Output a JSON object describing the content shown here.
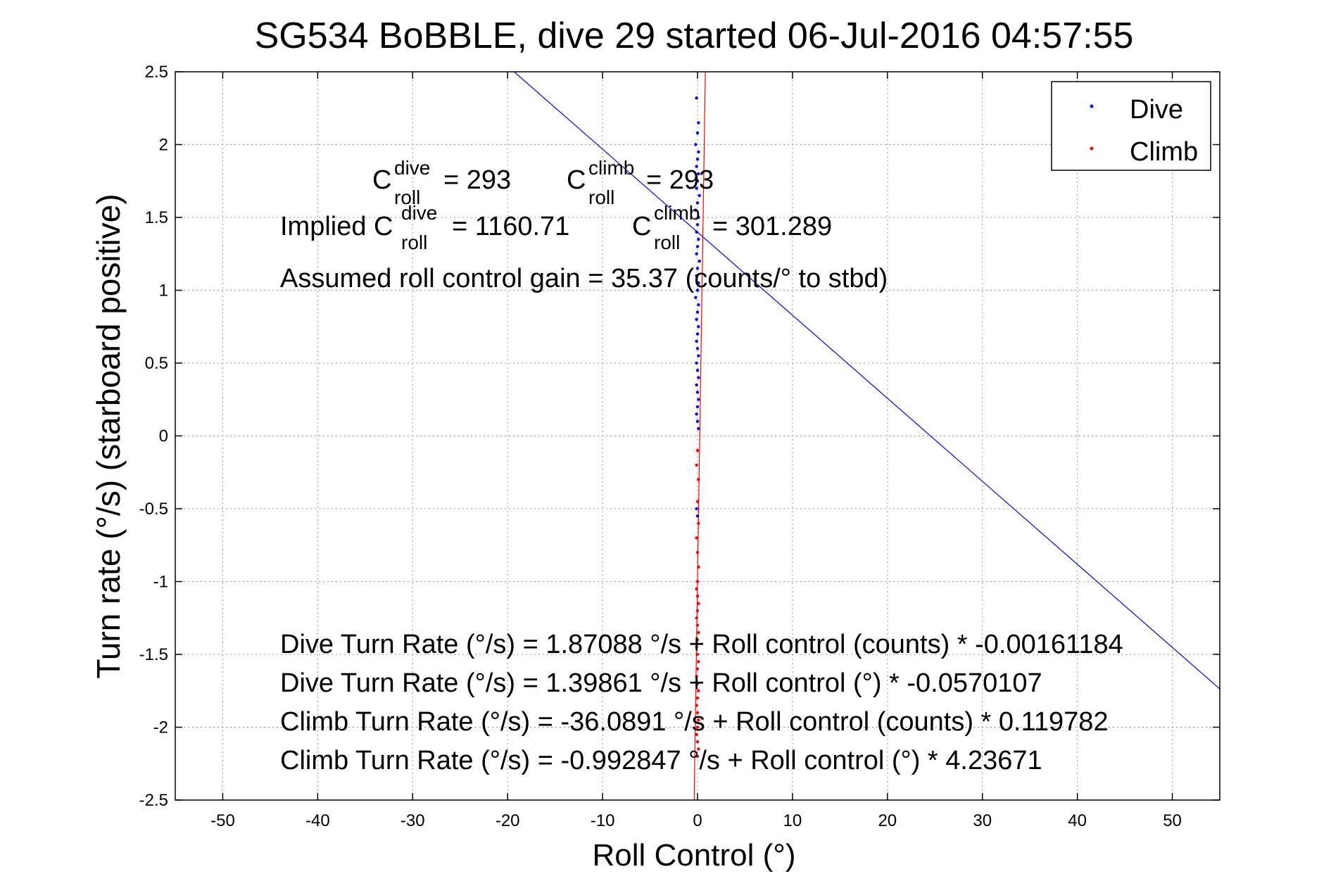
{
  "chart_data": {
    "type": "scatter",
    "title": "SG534 BoBBLE, dive 29 started 06-Jul-2016 04:57:55",
    "xlabel": "Roll Control (°)",
    "ylabel": "Turn rate (°/s) (starboard positive)",
    "xlim": [
      -55,
      55
    ],
    "ylim": [
      -2.5,
      2.5
    ],
    "xticks": [
      -50,
      -40,
      -30,
      -20,
      -10,
      0,
      10,
      20,
      30,
      40,
      50
    ],
    "yticks": [
      -2.5,
      -2,
      -1.5,
      -1,
      -0.5,
      0,
      0.5,
      1,
      1.5,
      2,
      2.5
    ],
    "xtick_labels": [
      "-50",
      "-40",
      "-30",
      "-20",
      "-10",
      "0",
      "10",
      "20",
      "30",
      "40",
      "50"
    ],
    "ytick_labels": [
      "-2.5",
      "-2",
      "-1.5",
      "-1",
      "-0.5",
      "0",
      "0.5",
      "1",
      "1.5",
      "2",
      "2.5"
    ],
    "grid": true,
    "legend": {
      "placement": "top-right",
      "entries": [
        "Dive",
        "Climb"
      ]
    },
    "series": [
      {
        "name": "Dive",
        "color": "#0000ff",
        "points": [
          [
            -0.1,
            2.32
          ],
          [
            0.1,
            2.15
          ],
          [
            0.0,
            2.08
          ],
          [
            -0.2,
            2.0
          ],
          [
            0.1,
            1.95
          ],
          [
            0.0,
            1.9
          ],
          [
            -0.1,
            1.85
          ],
          [
            0.1,
            1.8
          ],
          [
            0.0,
            1.75
          ],
          [
            -0.1,
            1.7
          ],
          [
            0.2,
            1.65
          ],
          [
            0.0,
            1.6
          ],
          [
            -0.2,
            1.55
          ],
          [
            0.1,
            1.5
          ],
          [
            0.0,
            1.45
          ],
          [
            -0.1,
            1.4
          ],
          [
            0.1,
            1.35
          ],
          [
            0.0,
            1.3
          ],
          [
            -0.1,
            1.25
          ],
          [
            0.2,
            1.2
          ],
          [
            0.0,
            1.15
          ],
          [
            -0.1,
            1.1
          ],
          [
            0.1,
            1.05
          ],
          [
            0.0,
            1.0
          ],
          [
            -0.2,
            0.95
          ],
          [
            0.1,
            0.9
          ],
          [
            0.0,
            0.85
          ],
          [
            -0.1,
            0.8
          ],
          [
            0.1,
            0.75
          ],
          [
            0.0,
            0.7
          ],
          [
            -0.1,
            0.65
          ],
          [
            0.0,
            0.6
          ],
          [
            0.1,
            0.55
          ],
          [
            -0.1,
            0.5
          ],
          [
            0.0,
            0.45
          ],
          [
            0.1,
            0.4
          ],
          [
            -0.1,
            0.35
          ],
          [
            0.0,
            0.3
          ],
          [
            0.1,
            0.25
          ],
          [
            0.0,
            0.2
          ],
          [
            -0.1,
            0.15
          ],
          [
            0.0,
            0.1
          ],
          [
            0.1,
            0.05
          ],
          [
            -0.1,
            -0.5
          ],
          [
            0.0,
            -0.55
          ]
        ]
      },
      {
        "name": "Climb",
        "color": "#ff0000",
        "points": [
          [
            0.0,
            -0.1
          ],
          [
            -0.1,
            -0.2
          ],
          [
            0.1,
            -0.3
          ],
          [
            0.0,
            -0.45
          ],
          [
            0.1,
            -0.6
          ],
          [
            -0.1,
            -0.7
          ],
          [
            0.0,
            -0.8
          ],
          [
            0.1,
            -0.9
          ],
          [
            0.0,
            -1.0
          ],
          [
            -0.1,
            -1.05
          ],
          [
            0.0,
            -1.1
          ],
          [
            0.1,
            -1.15
          ],
          [
            0.0,
            -1.2
          ],
          [
            -0.1,
            -1.25
          ],
          [
            0.0,
            -1.3
          ],
          [
            0.1,
            -1.35
          ],
          [
            0.0,
            -1.4
          ],
          [
            -0.1,
            -1.45
          ],
          [
            0.0,
            -1.5
          ],
          [
            0.1,
            -1.55
          ],
          [
            0.0,
            -1.6
          ],
          [
            -0.1,
            -1.65
          ],
          [
            0.0,
            -1.7
          ],
          [
            0.1,
            -1.75
          ],
          [
            0.0,
            -1.8
          ],
          [
            -0.1,
            -1.85
          ],
          [
            0.0,
            -1.9
          ],
          [
            0.1,
            -1.95
          ],
          [
            0.0,
            -2.0
          ],
          [
            -0.1,
            -2.05
          ],
          [
            0.0,
            -2.1
          ],
          [
            0.1,
            -2.15
          ],
          [
            0.0,
            -2.2
          ]
        ]
      }
    ],
    "fit_lines": [
      {
        "name": "Dive fit",
        "color": "#0000ff",
        "intercept": 1.39861,
        "slope": -0.0570107
      },
      {
        "name": "Climb fit",
        "color": "#ff0000",
        "intercept": -0.992847,
        "slope": 4.23671
      }
    ],
    "annotations": {
      "c_dive_prefix": "C",
      "c_dive_sup": "dive",
      "c_dive_sub": "roll",
      "c_dive_value": "= 293",
      "c_climb_prefix": "C",
      "c_climb_sup": "climb",
      "c_climb_sub": "roll",
      "c_climb_value": "= 293",
      "implied_prefix": "Implied C",
      "implied_dive_sup": "dive",
      "implied_dive_sub": "roll",
      "implied_dive_value": "= 1160.71",
      "implied_climb_prefix": "C",
      "implied_climb_sup": "climb",
      "implied_climb_sub": "roll",
      "implied_climb_value": "= 301.289",
      "gain_line": "Assumed roll control gain = 35.37 (counts/° to stbd)",
      "eq1": "Dive Turn Rate (°/s) = 1.87088 °/s + Roll control (counts) * -0.00161184",
      "eq2": "Dive Turn Rate (°/s) = 1.39861 °/s + Roll control (°) * -0.0570107",
      "eq3": "Climb Turn Rate (°/s) = -36.0891 °/s + Roll control (counts) * 0.119782",
      "eq4": "Climb Turn Rate (°/s) = -0.992847 °/s + Roll control (°) * 4.23671"
    }
  }
}
